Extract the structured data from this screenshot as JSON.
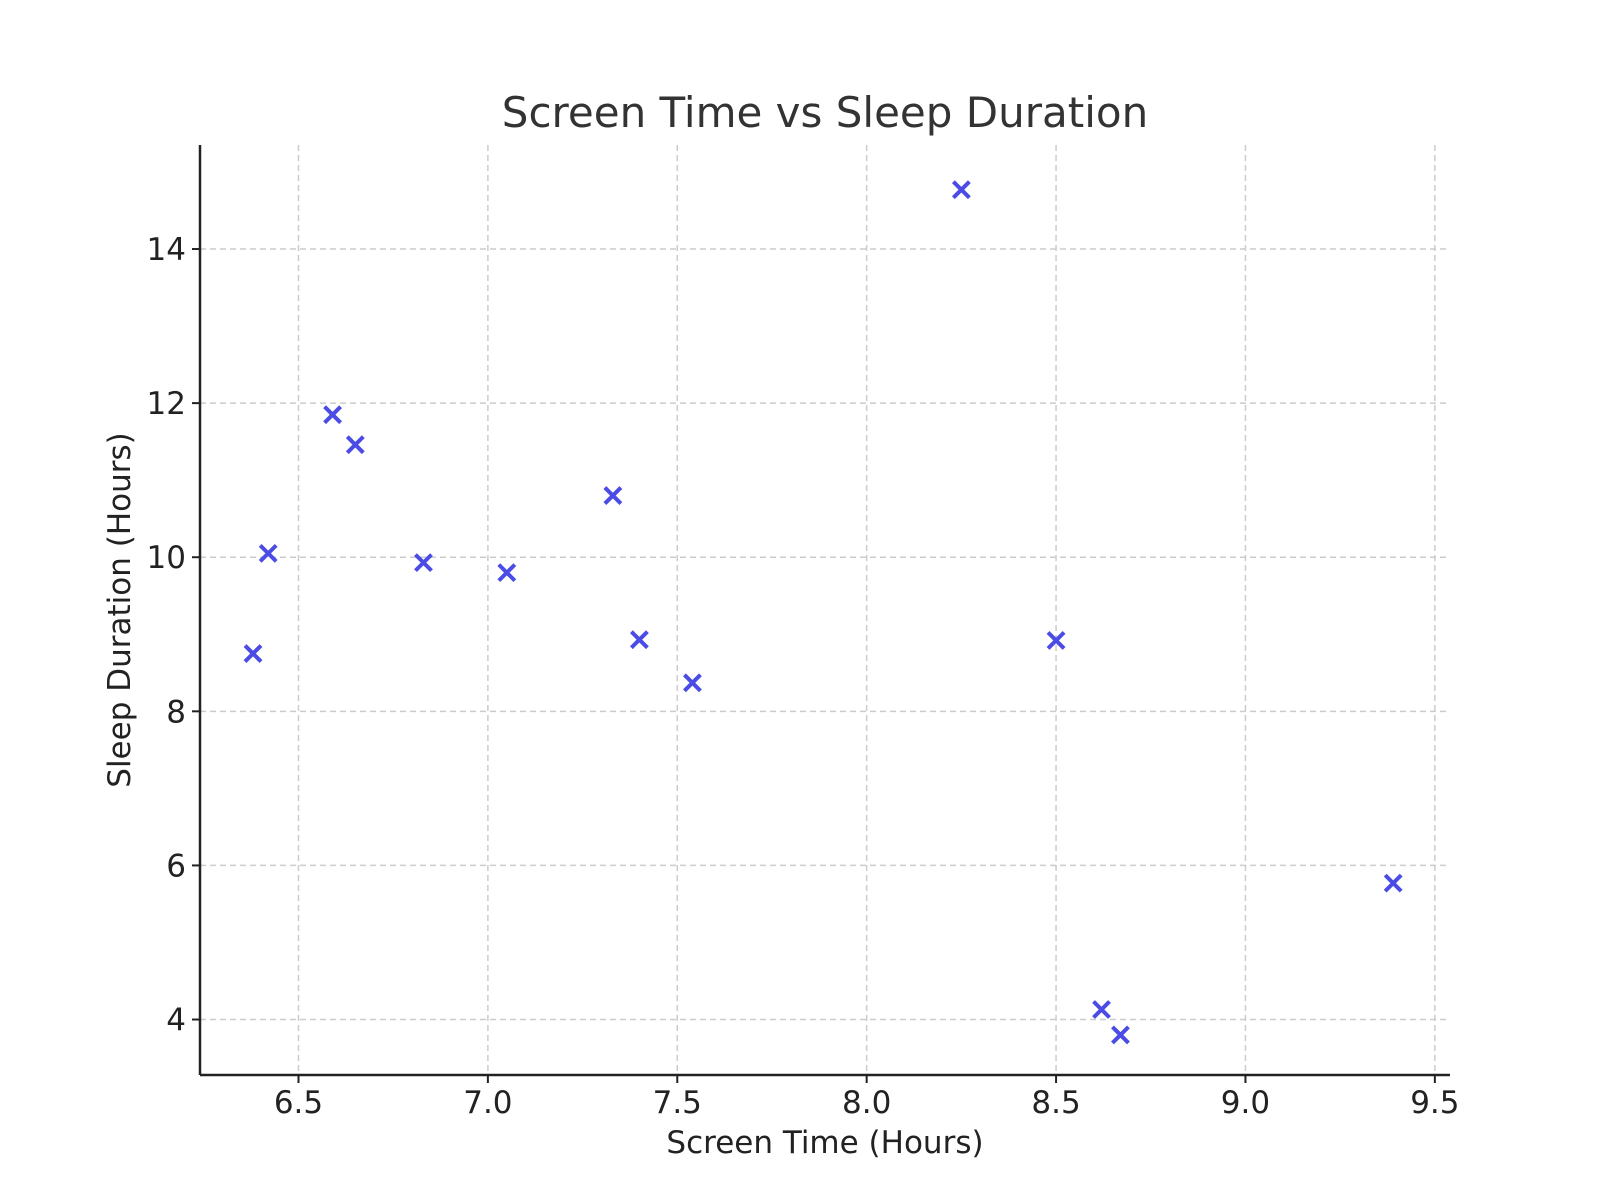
{
  "chart_data": {
    "type": "scatter",
    "title": "Screen Time vs Sleep Duration",
    "xlabel": "Screen Time (Hours)",
    "ylabel": "Sleep Duration (Hours)",
    "xlim": [
      6.24,
      9.54
    ],
    "ylim": [
      3.28,
      15.35
    ],
    "xticks": [
      6.5,
      7.0,
      7.5,
      8.0,
      8.5,
      9.0,
      9.5
    ],
    "xtick_labels": [
      "6.5",
      "7.0",
      "7.5",
      "8.0",
      "8.5",
      "9.0",
      "9.5"
    ],
    "yticks": [
      4,
      6,
      8,
      10,
      12,
      14
    ],
    "ytick_labels": [
      "4",
      "6",
      "8",
      "10",
      "12",
      "14"
    ],
    "grid": true,
    "marker": "x",
    "color": "#4b4be6",
    "series": [
      {
        "points": [
          {
            "x": 6.38,
            "y": 8.75
          },
          {
            "x": 6.42,
            "y": 10.05
          },
          {
            "x": 6.59,
            "y": 11.85
          },
          {
            "x": 6.65,
            "y": 11.46
          },
          {
            "x": 6.83,
            "y": 9.93
          },
          {
            "x": 7.05,
            "y": 9.8
          },
          {
            "x": 7.33,
            "y": 10.8
          },
          {
            "x": 7.4,
            "y": 8.93
          },
          {
            "x": 7.54,
            "y": 8.37
          },
          {
            "x": 8.25,
            "y": 14.77
          },
          {
            "x": 8.5,
            "y": 8.92
          },
          {
            "x": 8.62,
            "y": 4.13
          },
          {
            "x": 8.67,
            "y": 3.8
          },
          {
            "x": 9.39,
            "y": 5.77
          }
        ]
      }
    ]
  }
}
